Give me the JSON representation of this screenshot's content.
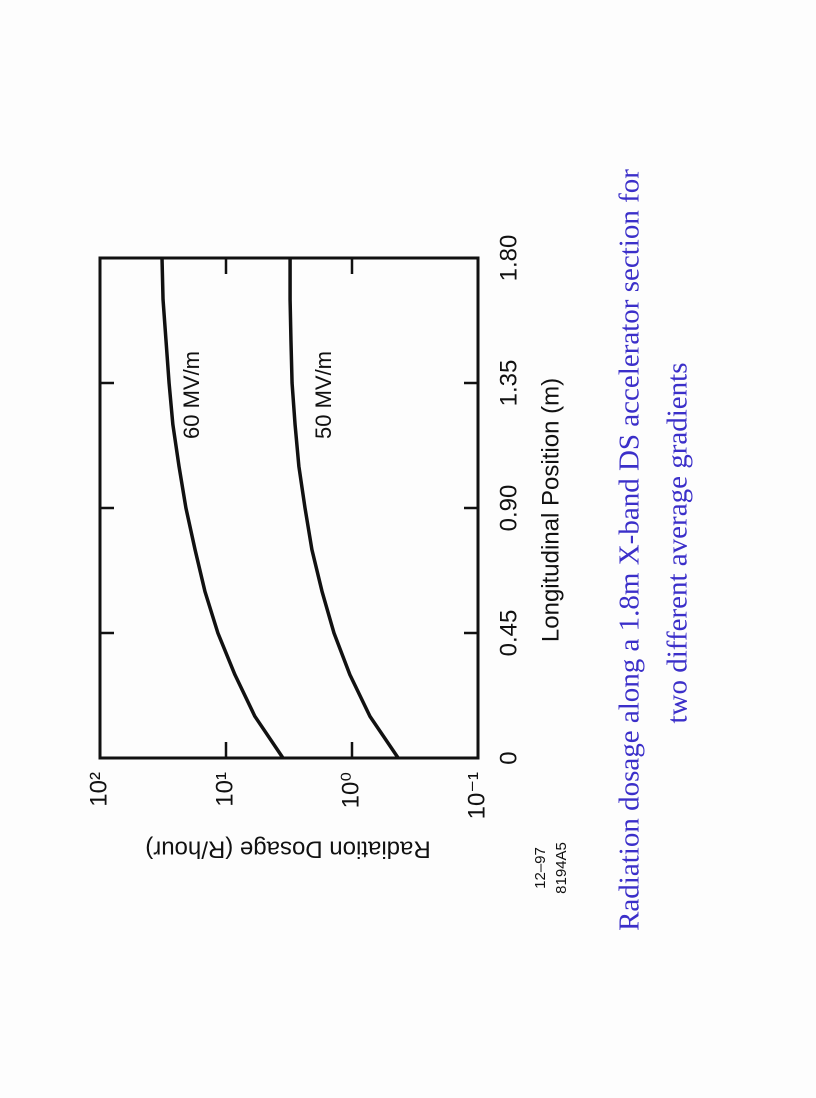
{
  "chart_data": {
    "type": "line",
    "caption": [
      "Radiation dosage along a 1.8m X-band DS accelerator section for",
      "two different average gradients"
    ],
    "xlabel": "Longitudinal Position  (m)",
    "ylabel": "Radiation Dosage  (R/hour)",
    "codes": [
      "12–97",
      "8194A5"
    ],
    "log_y": true,
    "x": [
      0,
      0.15,
      0.3,
      0.45,
      0.6,
      0.75,
      0.9,
      1.05,
      1.2,
      1.35,
      1.5,
      1.65,
      1.8
    ],
    "series": [
      {
        "name": "60 MV/m",
        "color": "#111111",
        "values": [
          3.53,
          5.9,
          8.5,
          11.6,
          14.7,
          17.6,
          20.8,
          23.6,
          26.4,
          28.3,
          29.9,
          31.6,
          32.2
        ]
      },
      {
        "name": "50 MV/m",
        "color": "#111111",
        "values": [
          0.43,
          0.72,
          1.04,
          1.39,
          1.73,
          2.08,
          2.36,
          2.64,
          2.83,
          2.99,
          3.05,
          3.1,
          3.1
        ]
      }
    ],
    "xlim": [
      0,
      1.8
    ],
    "xticks": [
      0,
      0.45,
      {
        "value": 0.9,
        "label": "0.90"
      },
      1.35,
      {
        "value": 1.8,
        "label": "1.80"
      }
    ],
    "ylim": [
      0.1,
      100
    ],
    "yticks": [
      {
        "value": 0.1,
        "label": "10⁻¹"
      },
      {
        "value": 1,
        "label": "10⁰"
      },
      {
        "value": 10,
        "label": "10¹"
      },
      {
        "value": 100,
        "label": "10²"
      }
    ]
  }
}
